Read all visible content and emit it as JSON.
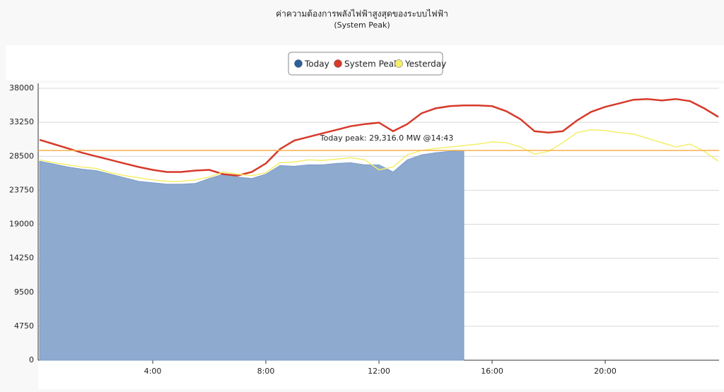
{
  "chart_data": {
    "type": "line",
    "title": "ค่าความต้องการพลังไฟฟ้าสูงสุดของระบบไฟฟ้า",
    "subtitle": "(System Peak)",
    "legend": "top",
    "grid": true,
    "x": [
      0,
      0.5,
      1,
      1.5,
      2,
      2.5,
      3,
      3.5,
      4,
      4.5,
      5,
      5.5,
      6,
      6.5,
      7,
      7.5,
      8,
      8.5,
      9,
      9.5,
      10,
      10.5,
      11,
      11.5,
      12,
      12.5,
      13,
      13.5,
      14,
      14.5,
      15,
      15.5,
      16,
      16.5,
      17,
      17.5,
      18,
      18.5,
      19,
      19.5,
      20,
      20.5,
      21,
      21.5,
      22,
      22.5,
      23,
      23.5,
      24
    ],
    "xlim": [
      0,
      24
    ],
    "xticks": [
      {
        "value": 4,
        "label": "4:00"
      },
      {
        "value": 8,
        "label": "8:00"
      },
      {
        "value": 12,
        "label": "12:00"
      },
      {
        "value": 16,
        "label": "16:00"
      },
      {
        "value": 20,
        "label": "20:00"
      }
    ],
    "ylim": [
      0,
      38000
    ],
    "yticks": [
      0,
      4750,
      9500,
      14250,
      19000,
      23750,
      28500,
      33250,
      38000
    ],
    "series": [
      {
        "name": "Today",
        "color": "#2c5fa0",
        "fill": "#8eaacf",
        "area": true,
        "values": [
          27800,
          27400,
          27000,
          26700,
          26500,
          26000,
          25500,
          25000,
          24800,
          24600,
          24600,
          24700,
          25400,
          26000,
          25600,
          25400,
          26000,
          27200,
          27100,
          27300,
          27300,
          27500,
          27600,
          27300,
          27300,
          26300,
          28000,
          28700,
          29000,
          29200,
          29300,
          null,
          null,
          null,
          null,
          null,
          null,
          null,
          null,
          null,
          null,
          null,
          null,
          null,
          null,
          null,
          null,
          null,
          null
        ]
      },
      {
        "name": "System Peak",
        "color": "#d63a2a",
        "values": [
          30800,
          30200,
          29600,
          29000,
          28500,
          28000,
          27500,
          27000,
          26600,
          26300,
          26300,
          26500,
          26600,
          26000,
          25800,
          26300,
          27500,
          29500,
          30700,
          31200,
          31700,
          32200,
          32700,
          33000,
          33200,
          32000,
          33000,
          34500,
          35200,
          35500,
          35600,
          35600,
          35500,
          34800,
          33700,
          32000,
          31800,
          32000,
          33500,
          34700,
          35400,
          35900,
          36400,
          36500,
          36300,
          36500,
          36200,
          35200,
          34000
        ]
      },
      {
        "name": "Yesterday",
        "color": "#f5ee6a",
        "values": [
          28000,
          27600,
          27300,
          27000,
          26800,
          26200,
          25800,
          25500,
          25200,
          25000,
          25000,
          25200,
          25600,
          26300,
          26000,
          25800,
          26200,
          27600,
          27700,
          28000,
          27900,
          28100,
          28300,
          28000,
          26600,
          27000,
          28700,
          29300,
          29600,
          29800,
          30000,
          30200,
          30500,
          30400,
          29800,
          28800,
          29200,
          30400,
          31800,
          32200,
          32100,
          31800,
          31600,
          31000,
          30400,
          29800,
          30200,
          29200,
          27800
        ]
      }
    ],
    "peak_line": {
      "value": 29316,
      "label": "Today peak: 29,316.0 MW @14:43",
      "color": "#f5b04a"
    }
  }
}
